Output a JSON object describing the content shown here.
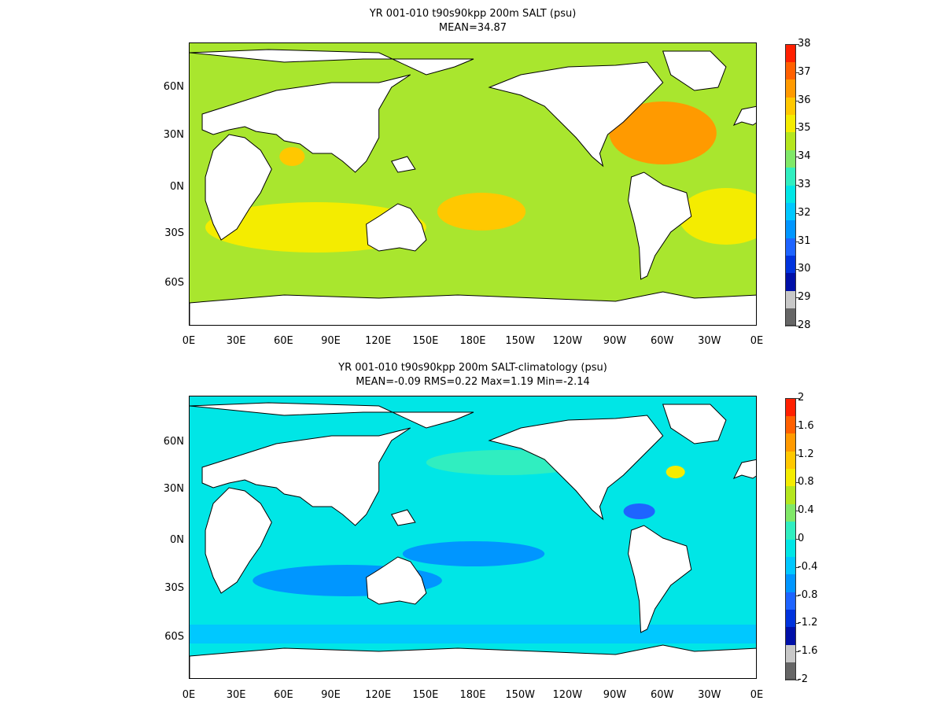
{
  "panels": [
    {
      "title": "YR 001-010 t90s90kpp 200m SALT (psu)",
      "subtitle": "MEAN=34.87",
      "ocean_fill": "#a9e62e",
      "colorbar_colors": [
        "#666666",
        "#c8c8c8",
        "#0010a8",
        "#0033dd",
        "#1e64ff",
        "#0096ff",
        "#00c8ff",
        "#00e6e6",
        "#30eec0",
        "#80e868",
        "#b4e61e",
        "#f4ec00",
        "#ffc800",
        "#ff9a00",
        "#ff6000",
        "#ff2000"
      ],
      "colorbar_labels": [
        "38",
        "37",
        "36",
        "35",
        "34",
        "33",
        "32",
        "31",
        "30",
        "29",
        "28"
      ],
      "features": [
        {
          "name": "north-atlantic-high-salinity",
          "color": "#ff9a00"
        },
        {
          "name": "south-pacific-high-salinity",
          "color": "#ffc800"
        },
        {
          "name": "south-atlantic-high-salinity",
          "color": "#f4ec00"
        },
        {
          "name": "indian-ocean-subtropical",
          "color": "#f4ec00"
        },
        {
          "name": "arabian-sea-high-salinity",
          "color": "#ffc800"
        }
      ]
    },
    {
      "title": "YR 001-010 t90s90kpp 200m SALT-climatology (psu)",
      "subtitle": "MEAN=-0.09   RMS=0.22   Max=1.19   Min=-2.14",
      "ocean_fill": "#00e6e6",
      "colorbar_colors": [
        "#666666",
        "#c8c8c8",
        "#0010a8",
        "#0033dd",
        "#1e64ff",
        "#0096ff",
        "#00c8ff",
        "#00e6e6",
        "#30eec0",
        "#80e868",
        "#b4e61e",
        "#f4ec00",
        "#ffc800",
        "#ff9a00",
        "#ff6000",
        "#ff2000"
      ],
      "colorbar_labels": [
        "2",
        "1.6",
        "1.2",
        "0.8",
        "0.4",
        "0",
        "-0.4",
        "-0.8",
        "-1.2",
        "-1.6",
        "-2"
      ],
      "features": [
        {
          "name": "southern-indian-negative-anomaly",
          "color": "#0096ff"
        },
        {
          "name": "equatorial-pacific-negative-anomaly",
          "color": "#0096ff"
        },
        {
          "name": "southern-ocean-anomaly-band",
          "color": "#00c8ff"
        },
        {
          "name": "north-pacific-positive-anomaly",
          "color": "#30eec0"
        },
        {
          "name": "gulf-of-mexico-negative-anomaly",
          "color": "#1e64ff"
        },
        {
          "name": "labrador-sea-positive-anomaly",
          "color": "#f4ec00"
        }
      ]
    }
  ],
  "axes": {
    "lat_labels": [
      "60N",
      "30N",
      "0N",
      "30S",
      "60S"
    ],
    "lon_labels": [
      "0E",
      "30E",
      "60E",
      "90E",
      "120E",
      "150E",
      "180E",
      "150W",
      "120W",
      "90W",
      "60W",
      "30W",
      "0E"
    ]
  },
  "chart_data": [
    {
      "type": "heatmap",
      "title": "YR 001-010 t90s90kpp 200m SALT (psu)",
      "subtitle": "MEAN=34.87",
      "units": "psu",
      "mean": 34.87,
      "colorbar_range": [
        28,
        38
      ],
      "x_range": [
        0,
        360
      ],
      "y_range": [
        -80,
        80
      ],
      "grid": false
    },
    {
      "type": "heatmap",
      "title": "YR 001-010 t90s90kpp 200m SALT-climatology (psu)",
      "subtitle": "MEAN=-0.09   RMS=0.22   Max=1.19   Min=-2.14",
      "units": "psu",
      "mean": -0.09,
      "rms": 0.22,
      "max": 1.19,
      "min": -2.14,
      "colorbar_range": [
        -2,
        2
      ],
      "x_range": [
        0,
        360
      ],
      "y_range": [
        -80,
        80
      ],
      "grid": false
    }
  ]
}
